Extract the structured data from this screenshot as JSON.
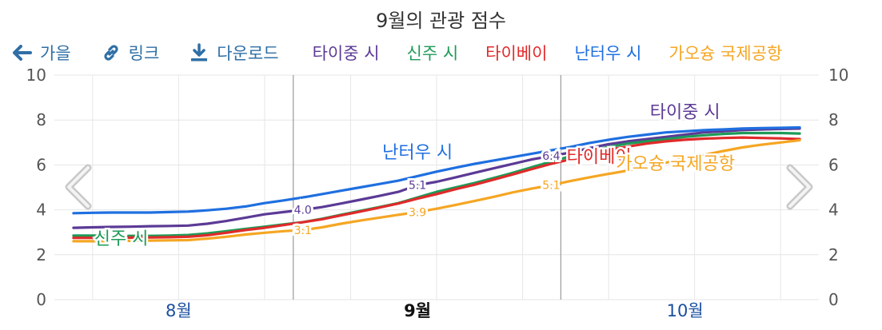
{
  "title": "9월의 관광 점수",
  "toolbar": {
    "back_label": "가을",
    "link_label": "링크",
    "download_label": "다운로드"
  },
  "chart_data": {
    "type": "line",
    "title": "9월의 관광 점수",
    "xlabel": "",
    "ylabel": "",
    "ylim": [
      0,
      10
    ],
    "y_ticks": [
      0,
      2,
      4,
      6,
      8,
      10
    ],
    "dual_y_axis": true,
    "grid": true,
    "month_labels": [
      "8월",
      "9월",
      "10월"
    ],
    "selected_month": "9월",
    "x": [
      -12,
      -11,
      -10,
      -9,
      -8,
      -7,
      -6,
      -5,
      -4,
      -3,
      -2,
      -1,
      0,
      1,
      2,
      3,
      4,
      5,
      6,
      7,
      8,
      9,
      10,
      11,
      12,
      13,
      14,
      15,
      16,
      17,
      18,
      19,
      20,
      21,
      22,
      23,
      24,
      25,
      26
    ],
    "series": [
      {
        "name": "타이중 시",
        "color": "#5b3a96",
        "values": [
          3.2,
          3.22,
          3.24,
          3.25,
          3.27,
          3.28,
          3.3,
          3.38,
          3.5,
          3.65,
          3.8,
          3.9,
          4.0,
          4.12,
          4.28,
          4.45,
          4.62,
          4.8,
          5.1,
          5.25,
          5.45,
          5.65,
          5.85,
          6.05,
          6.25,
          6.4,
          6.55,
          6.75,
          6.92,
          7.05,
          7.15,
          7.25,
          7.35,
          7.45,
          7.5,
          7.55,
          7.58,
          7.6,
          7.62
        ],
        "point_labels": [
          {
            "x": 0,
            "y": 4.0,
            "text": "4.0"
          },
          {
            "x": 6,
            "y": 5.1,
            "text": "5.1"
          },
          {
            "x": 13,
            "y": 6.4,
            "text": "6.4"
          }
        ]
      },
      {
        "name": "신주 시",
        "color": "#1e9a57",
        "values": [
          2.85,
          2.85,
          2.84,
          2.84,
          2.84,
          2.85,
          2.88,
          2.95,
          3.05,
          3.15,
          3.25,
          3.35,
          3.45,
          3.6,
          3.78,
          3.95,
          4.12,
          4.3,
          4.55,
          4.8,
          5.0,
          5.2,
          5.42,
          5.65,
          5.9,
          6.15,
          6.38,
          6.6,
          6.8,
          6.95,
          7.05,
          7.15,
          7.25,
          7.32,
          7.38,
          7.42,
          7.42,
          7.42,
          7.4
        ]
      },
      {
        "name": "타이베이",
        "color": "#e02a2a",
        "values": [
          2.75,
          2.75,
          2.76,
          2.76,
          2.77,
          2.78,
          2.8,
          2.87,
          2.98,
          3.1,
          3.2,
          3.32,
          3.45,
          3.58,
          3.75,
          3.92,
          4.1,
          4.28,
          4.5,
          4.7,
          4.92,
          5.12,
          5.35,
          5.58,
          5.82,
          6.05,
          6.25,
          6.48,
          6.68,
          6.82,
          6.95,
          7.05,
          7.12,
          7.17,
          7.2,
          7.22,
          7.2,
          7.18,
          7.15
        ]
      },
      {
        "name": "난터우 시",
        "color": "#1f6fe0",
        "values": [
          3.85,
          3.87,
          3.88,
          3.88,
          3.88,
          3.9,
          3.92,
          3.98,
          4.05,
          4.15,
          4.3,
          4.42,
          4.55,
          4.7,
          4.85,
          5.0,
          5.15,
          5.3,
          5.5,
          5.7,
          5.88,
          6.05,
          6.2,
          6.35,
          6.5,
          6.65,
          6.8,
          6.98,
          7.12,
          7.25,
          7.35,
          7.45,
          7.5,
          7.55,
          7.58,
          7.62,
          7.64,
          7.65,
          7.67
        ]
      },
      {
        "name": "가오슝 국제공항",
        "color": "#f5a623",
        "values": [
          2.6,
          2.6,
          2.62,
          2.62,
          2.63,
          2.64,
          2.65,
          2.72,
          2.8,
          2.9,
          2.98,
          3.05,
          3.1,
          3.22,
          3.38,
          3.52,
          3.65,
          3.78,
          3.9,
          4.05,
          4.22,
          4.4,
          4.58,
          4.78,
          4.95,
          5.1,
          5.28,
          5.45,
          5.6,
          5.75,
          5.92,
          6.1,
          6.28,
          6.45,
          6.62,
          6.78,
          6.9,
          7.0,
          7.1
        ],
        "point_labels": [
          {
            "x": 0,
            "y": 3.1,
            "text": "3.1"
          },
          {
            "x": 6,
            "y": 3.9,
            "text": "3.9"
          },
          {
            "x": 13,
            "y": 5.1,
            "text": "5.1"
          }
        ]
      }
    ],
    "annotations": [
      {
        "series": "난터우 시",
        "text": "난터우 시",
        "x": 6,
        "y": 6.3
      },
      {
        "series": "타이중 시",
        "text": "타이중 시",
        "x": 20,
        "y": 8.1
      },
      {
        "series": "타이베이",
        "text": "타이베이",
        "x": 15.5,
        "y": 6.1
      },
      {
        "series": "가오슝 국제공항",
        "text": "가오슝 국제공항",
        "x": 19.5,
        "y": 5.8
      },
      {
        "series": "신주 시",
        "text": "신주 시",
        "x": -9.5,
        "y": 2.45
      }
    ]
  }
}
